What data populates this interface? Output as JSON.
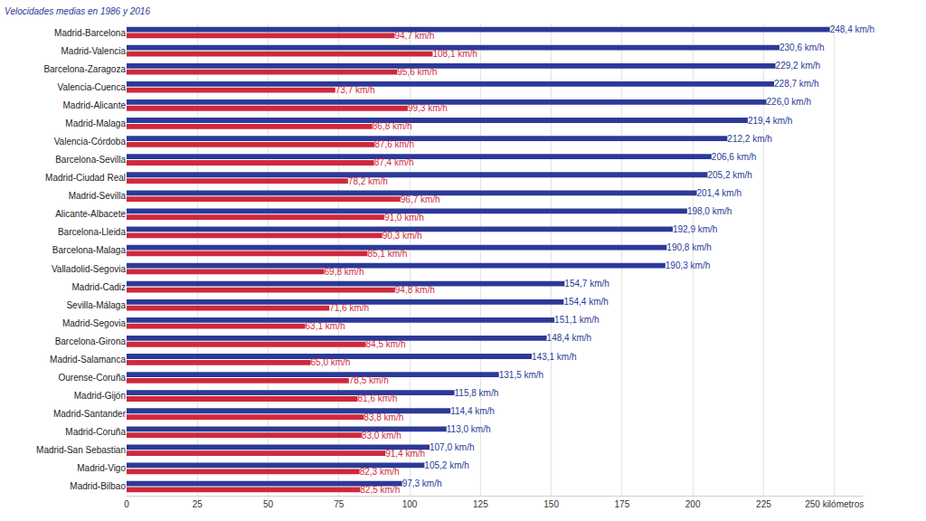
{
  "chart_data": {
    "type": "bar",
    "title": "Velocidades medias en 1986 y 2016",
    "orientation": "horizontal",
    "data_labels": true,
    "grid": true,
    "categories": [
      "Madrid-Barcelona",
      "Madrid-Valencia",
      "Barcelona-Zaragoza",
      "Valencia-Cuenca",
      "Madrid-Alicante",
      "Madrid-Malaga",
      "Valencia-Córdoba",
      "Barcelona-Sevilla",
      "Madrid-Ciudad Real",
      "Madrid-Sevilla",
      "Alicante-Albacete",
      "Barcelona-Lleida",
      "Barcelona-Malaga",
      "Valladolid-Segovia",
      "Madrid-Cadiz",
      "Sevilla-Málaga",
      "Madrid-Segovia",
      "Barcelona-Girona",
      "Madrid-Salamanca",
      "Ourense-Coruña",
      "Madrid-Gijón",
      "Madrid-Santander",
      "Madrid-Coruña",
      "Madrid-San Sebastian",
      "Madrid-Vigo",
      "Madrid-Bilbao"
    ],
    "series": [
      {
        "color": "#2b3a97",
        "values": [
          248.4,
          230.6,
          229.2,
          228.7,
          226.0,
          219.4,
          212.2,
          206.6,
          205.2,
          201.4,
          198.0,
          192.9,
          190.8,
          190.3,
          154.7,
          154.4,
          151.1,
          148.4,
          143.1,
          131.5,
          115.8,
          114.4,
          113.0,
          107.0,
          105.2,
          97.3
        ],
        "value_labels": [
          "248,4 km/h",
          "230,6 km/h",
          "229,2 km/h",
          "228,7 km/h",
          "226,0 km/h",
          "219,4 km/h",
          "212,2 km/h",
          "206,6 km/h",
          "205,2 km/h",
          "201,4 km/h",
          "198,0 km/h",
          "192,9 km/h",
          "190,8 km/h",
          "190,3 km/h",
          "154,7 km/h",
          "154,4 km/h",
          "151,1 km/h",
          "148,4 km/h",
          "143,1 km/h",
          "131,5 km/h",
          "115,8 km/h",
          "114,4 km/h",
          "113,0 km/h",
          "107,0 km/h",
          "105,2 km/h",
          "97,3 km/h"
        ]
      },
      {
        "color": "#d0283c",
        "values": [
          94.7,
          108.1,
          95.6,
          73.7,
          99.3,
          86.8,
          87.6,
          87.4,
          78.2,
          96.7,
          91.0,
          90.3,
          85.1,
          69.8,
          94.8,
          71.6,
          63.1,
          84.5,
          65.0,
          78.5,
          81.6,
          83.8,
          83.0,
          91.4,
          82.3,
          82.5
        ],
        "value_labels": [
          "94,7 km/h",
          "108,1 km/h",
          "95,6 km/h",
          "73,7 km/h",
          "99,3 km/h",
          "86,8 km/h",
          "87,6 km/h",
          "87,4 km/h",
          "78,2 km/h",
          "96,7 km/h",
          "91,0 km/h",
          "90,3 km/h",
          "85,1 km/h",
          "69,8 km/h",
          "94,8 km/h",
          "71,6 km/h",
          "63,1 km/h",
          "84,5 km/h",
          "65,0 km/h",
          "78,5 km/h",
          "81,6 km/h",
          "83,8 km/h",
          "83,0 km/h",
          "91,4 km/h",
          "82,3 km/h",
          "82,5 km/h"
        ]
      }
    ],
    "xlim": [
      0,
      260
    ],
    "xticks": [
      0,
      25,
      50,
      75,
      100,
      125,
      150,
      175,
      200,
      225,
      {
        "value": 250,
        "label": "250 kilómetros"
      }
    ]
  }
}
